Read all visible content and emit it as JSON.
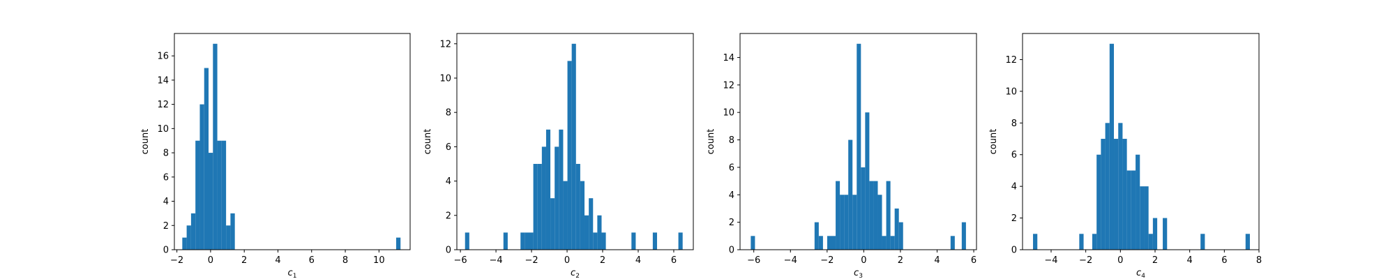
{
  "chart_data": [
    {
      "type": "bar",
      "xlabel": "c",
      "xlabel_subscript": "1",
      "ylabel": "count",
      "xlim": [
        -2.15,
        11.85
      ],
      "ylim": [
        0,
        17.85
      ],
      "xticks": [
        -2,
        0,
        2,
        4,
        6,
        8,
        10
      ],
      "yticks": [
        0,
        2,
        4,
        6,
        8,
        10,
        12,
        14,
        16
      ],
      "bar_color": "#1f77b4",
      "bin_width": 0.26,
      "x": [
        -1.55,
        -1.29,
        -1.03,
        -0.77,
        -0.51,
        -0.25,
        0.01,
        0.27,
        0.53,
        0.79,
        1.05,
        1.31,
        11.15
      ],
      "values": [
        1,
        2,
        3,
        9,
        12,
        15,
        8,
        17,
        9,
        9,
        2,
        3,
        1
      ]
    },
    {
      "type": "bar",
      "xlabel": "c",
      "xlabel_subscript": "2",
      "ylabel": "count",
      "xlim": [
        -6.2,
        7.1
      ],
      "ylim": [
        0,
        12.6
      ],
      "xticks": [
        -6,
        -4,
        -2,
        0,
        2,
        4,
        6
      ],
      "yticks": [
        0,
        2,
        4,
        6,
        8,
        10,
        12
      ],
      "bar_color": "#1f77b4",
      "bin_width": 0.24,
      "x": [
        -5.62,
        -3.46,
        -2.5,
        -2.26,
        -2.02,
        -1.78,
        -1.54,
        -1.3,
        -1.06,
        -0.82,
        -0.58,
        -0.34,
        -0.1,
        0.14,
        0.38,
        0.62,
        0.86,
        1.1,
        1.34,
        1.58,
        1.82,
        2.06,
        3.74,
        4.94,
        6.38
      ],
      "values": [
        1,
        1,
        1,
        1,
        1,
        5,
        5,
        6,
        7,
        3,
        6,
        7,
        4,
        11,
        12,
        5,
        4,
        2,
        3,
        1,
        2,
        1,
        1,
        1,
        1
      ]
    },
    {
      "type": "bar",
      "xlabel": "c",
      "xlabel_subscript": "3",
      "ylabel": "count",
      "xlim": [
        -6.75,
        6.15
      ],
      "ylim": [
        0,
        15.75
      ],
      "xticks": [
        -6,
        -4,
        -2,
        0,
        2,
        4,
        6
      ],
      "yticks": [
        0,
        2,
        4,
        6,
        8,
        10,
        12,
        14
      ],
      "bar_color": "#1f77b4",
      "bin_width": 0.23,
      "x": [
        -6.05,
        -2.57,
        -2.34,
        -2.11,
        -1.88,
        -1.65,
        -1.42,
        -1.19,
        -0.96,
        -0.73,
        -0.5,
        -0.27,
        -0.04,
        0.19,
        0.42,
        0.65,
        0.88,
        1.11,
        1.34,
        1.57,
        1.8,
        2.03,
        4.85,
        5.46
      ],
      "values": [
        1,
        2,
        1,
        0,
        1,
        1,
        5,
        4,
        4,
        8,
        4,
        15,
        6,
        10,
        5,
        5,
        4,
        1,
        5,
        1,
        3,
        2,
        1,
        2
      ]
    },
    {
      "type": "bar",
      "xlabel": "c",
      "xlabel_subscript": "4",
      "ylabel": "count",
      "xlim": [
        -5.65,
        8.0
      ],
      "ylim": [
        0,
        13.65
      ],
      "xticks": [
        -4,
        -2,
        0,
        2,
        4,
        6,
        8
      ],
      "yticks": [
        0,
        2,
        4,
        6,
        8,
        10,
        12
      ],
      "bar_color": "#1f77b4",
      "bin_width": 0.25,
      "x": [
        -4.92,
        -2.25,
        -1.5,
        -1.25,
        -1.0,
        -0.75,
        -0.5,
        -0.25,
        0.0,
        0.25,
        0.5,
        0.75,
        1.0,
        1.25,
        1.5,
        1.75,
        2.0,
        2.57,
        4.75,
        7.35
      ],
      "values": [
        1,
        1,
        1,
        6,
        7,
        8,
        13,
        7,
        8,
        7,
        5,
        5,
        6,
        4,
        4,
        1,
        2,
        2,
        1,
        1
      ]
    }
  ]
}
